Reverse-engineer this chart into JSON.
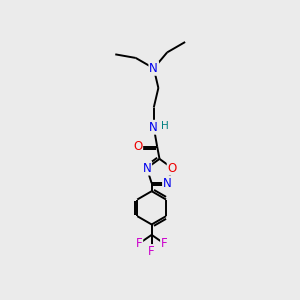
{
  "background_color": "#ebebeb",
  "atom_colors": {
    "C": "#000000",
    "N": "#0000ee",
    "O": "#ee0000",
    "F": "#cc00cc",
    "H": "#008080"
  },
  "bond_color": "#000000",
  "bond_width": 1.4,
  "font_size_atoms": 8.5
}
